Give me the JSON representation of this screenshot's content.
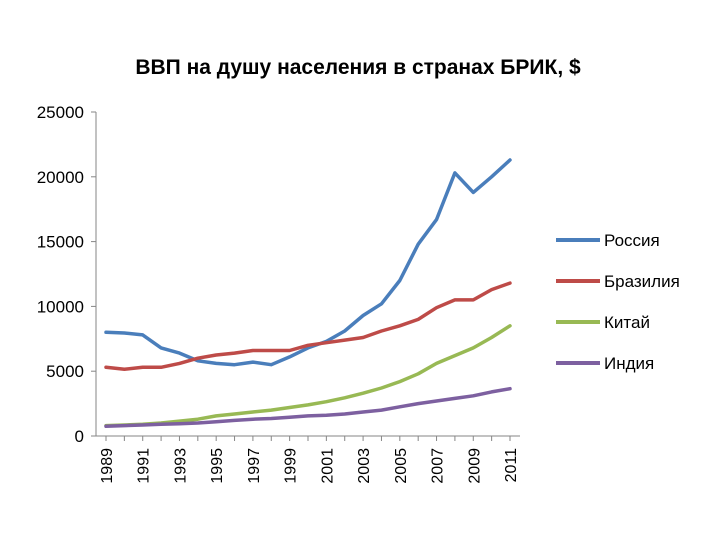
{
  "chart_data": {
    "type": "line",
    "title": "ВВП на душу населения в странах БРИК, $",
    "xlabel": "",
    "ylabel": "",
    "ylim": [
      0,
      25000
    ],
    "yticks": [
      "0",
      "5000",
      "10000",
      "15000",
      "20000",
      "25000"
    ],
    "x": [
      1989,
      1990,
      1991,
      1992,
      1993,
      1994,
      1995,
      1996,
      1997,
      1998,
      1999,
      2000,
      2001,
      2002,
      2003,
      2004,
      2005,
      2006,
      2007,
      2008,
      2009,
      2010,
      2011
    ],
    "xtick_labels": [
      "1989",
      "1991",
      "1993",
      "1995",
      "1997",
      "1999",
      "2001",
      "2003",
      "2005",
      "2007",
      "2009",
      "2011"
    ],
    "grid": false,
    "legend_position": "right",
    "series": [
      {
        "name": "Россия",
        "color": "#4a7ebb",
        "values": [
          8000,
          7950,
          7800,
          6800,
          6400,
          5800,
          5600,
          5500,
          5700,
          5500,
          6100,
          6800,
          7300,
          8100,
          9300,
          10200,
          12000,
          14800,
          16700,
          20300,
          18800,
          20000,
          21300
        ]
      },
      {
        "name": "Бразилия",
        "color": "#be4b48",
        "values": [
          5300,
          5150,
          5300,
          5300,
          5600,
          6000,
          6250,
          6400,
          6600,
          6600,
          6600,
          7000,
          7200,
          7400,
          7600,
          8100,
          8500,
          9000,
          9900,
          10500,
          10500,
          11300,
          11800
        ]
      },
      {
        "name": "Китай",
        "color": "#98b954",
        "values": [
          800,
          850,
          900,
          1000,
          1150,
          1300,
          1550,
          1700,
          1850,
          2000,
          2200,
          2400,
          2650,
          2950,
          3300,
          3700,
          4200,
          4800,
          5600,
          6200,
          6800,
          7600,
          8500
        ]
      },
      {
        "name": "Индия",
        "color": "#7d60a0",
        "values": [
          750,
          800,
          850,
          900,
          950,
          1000,
          1100,
          1200,
          1300,
          1350,
          1450,
          1550,
          1600,
          1700,
          1850,
          2000,
          2250,
          2500,
          2700,
          2900,
          3100,
          3400,
          3650
        ]
      }
    ]
  }
}
